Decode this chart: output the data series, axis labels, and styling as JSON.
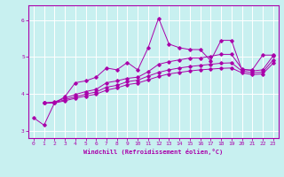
{
  "xlabel": "Windchill (Refroidissement éolien,°C)",
  "ylabel": "",
  "bg_color": "#c8f0f0",
  "line_color": "#aa00aa",
  "grid_color": "#ffffff",
  "text_color": "#aa00aa",
  "xlim": [
    -0.5,
    23.5
  ],
  "ylim": [
    2.8,
    6.4
  ],
  "xticks": [
    0,
    1,
    2,
    3,
    4,
    5,
    6,
    7,
    8,
    9,
    10,
    11,
    12,
    13,
    14,
    15,
    16,
    17,
    18,
    19,
    20,
    21,
    22,
    23
  ],
  "yticks": [
    3,
    4,
    5,
    6
  ],
  "lines": [
    {
      "x": [
        0,
        1,
        2,
        3,
        4,
        5,
        6,
        7,
        8,
        9,
        10,
        11,
        12,
        13,
        14,
        15,
        16,
        17,
        18,
        19,
        20,
        21,
        22,
        23
      ],
      "y": [
        3.35,
        3.15,
        3.75,
        3.92,
        4.3,
        4.35,
        4.45,
        4.7,
        4.65,
        4.85,
        4.65,
        5.25,
        6.05,
        5.35,
        5.25,
        5.2,
        5.2,
        4.9,
        5.45,
        5.45,
        4.65,
        4.65,
        5.05,
        5.05
      ]
    },
    {
      "x": [
        1,
        2,
        3,
        4,
        5,
        6,
        7,
        8,
        9,
        10,
        11,
        12,
        13,
        14,
        15,
        16,
        17,
        18,
        19,
        20,
        21,
        22,
        23
      ],
      "y": [
        3.75,
        3.78,
        3.88,
        3.98,
        4.06,
        4.12,
        4.3,
        4.35,
        4.42,
        4.45,
        4.6,
        4.8,
        4.87,
        4.92,
        4.97,
        4.97,
        5.02,
        5.07,
        5.07,
        4.68,
        4.62,
        4.65,
        5.03
      ]
    },
    {
      "x": [
        1,
        2,
        3,
        4,
        5,
        6,
        7,
        8,
        9,
        10,
        11,
        12,
        13,
        14,
        15,
        16,
        17,
        18,
        19,
        20,
        21,
        22,
        23
      ],
      "y": [
        3.75,
        3.76,
        3.84,
        3.92,
        3.99,
        4.05,
        4.18,
        4.23,
        4.33,
        4.37,
        4.48,
        4.58,
        4.65,
        4.7,
        4.74,
        4.77,
        4.8,
        4.83,
        4.84,
        4.62,
        4.57,
        4.59,
        4.92
      ]
    },
    {
      "x": [
        1,
        2,
        3,
        4,
        5,
        6,
        7,
        8,
        9,
        10,
        11,
        12,
        13,
        14,
        15,
        16,
        17,
        18,
        19,
        20,
        21,
        22,
        23
      ],
      "y": [
        3.75,
        3.75,
        3.81,
        3.88,
        3.94,
        3.99,
        4.1,
        4.16,
        4.25,
        4.29,
        4.38,
        4.47,
        4.54,
        4.58,
        4.62,
        4.65,
        4.67,
        4.69,
        4.7,
        4.57,
        4.52,
        4.54,
        4.83
      ]
    }
  ]
}
